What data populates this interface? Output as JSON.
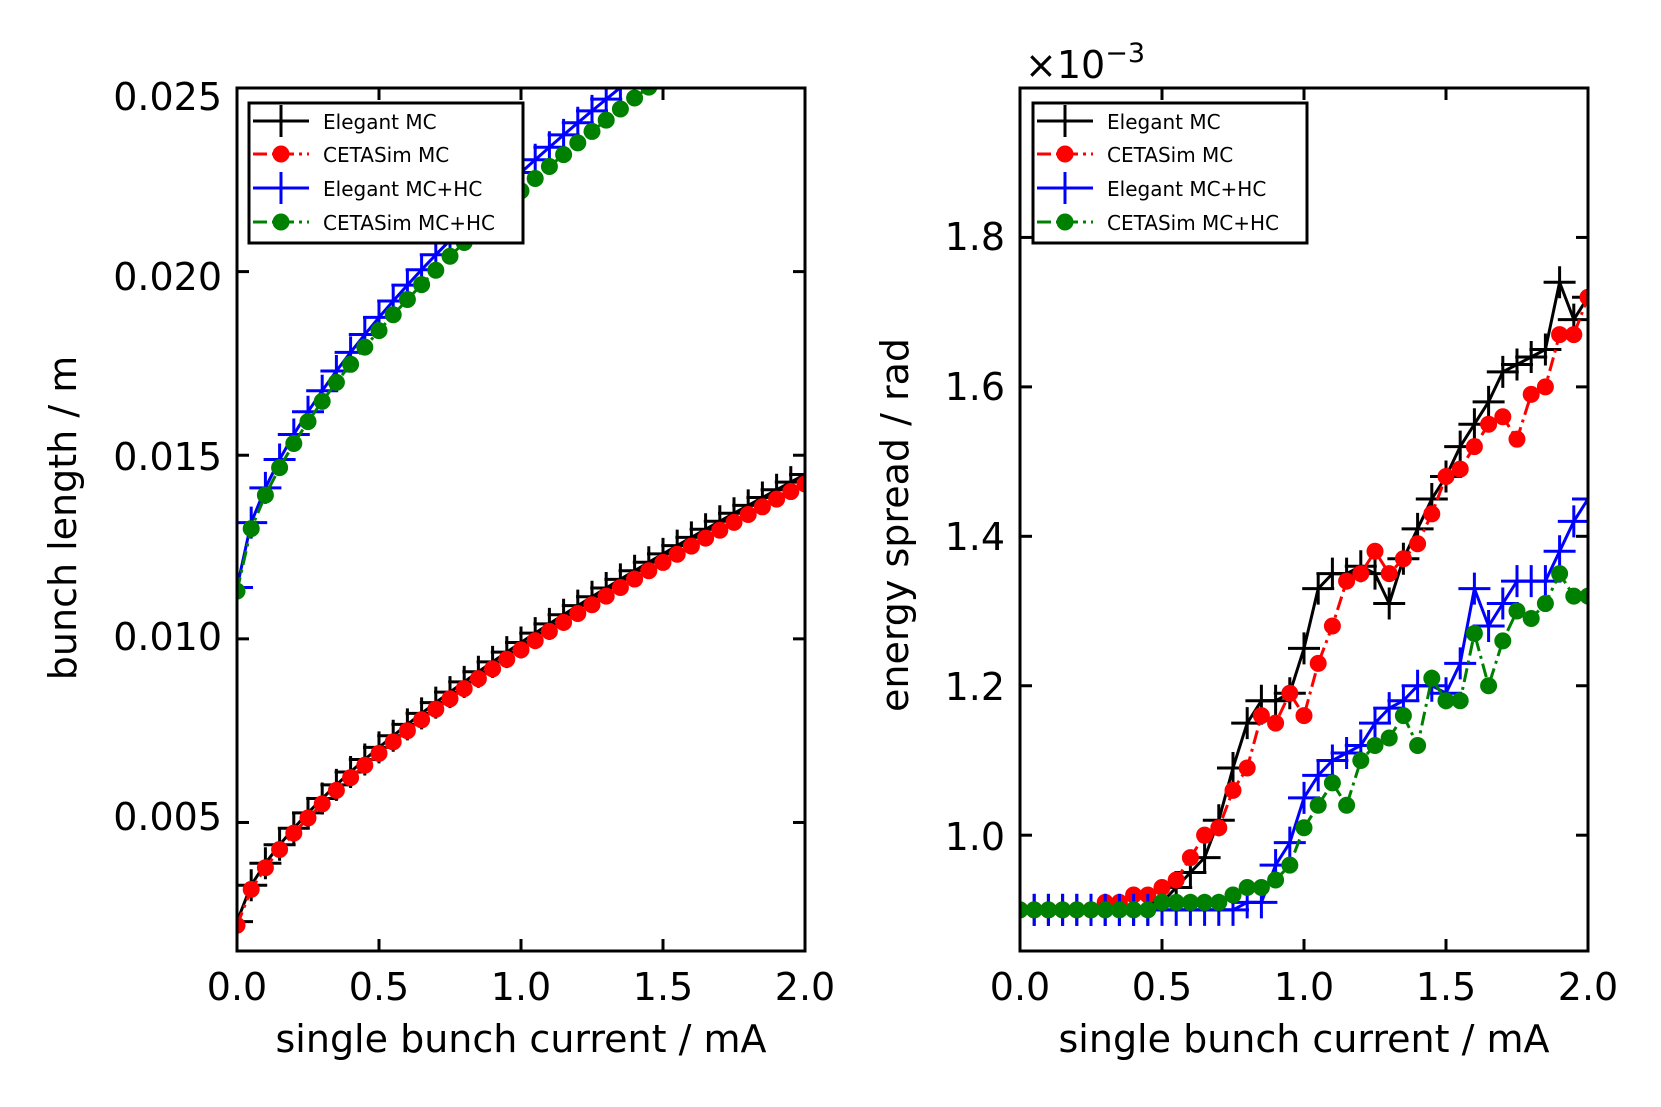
{
  "chart_data": [
    {
      "type": "line",
      "title": "",
      "xlabel": "single bunch current / mA",
      "ylabel": "bunch length / m",
      "xlim": [
        0,
        2.0
      ],
      "ylim": [
        0.0015,
        0.025
      ],
      "x_ticks": [
        0.0,
        0.5,
        1.0,
        1.5,
        2.0
      ],
      "x_tick_labels": [
        "0.0",
        "0.5",
        "1.0",
        "1.5",
        "2.0"
      ],
      "y_ticks": [
        0.005,
        0.01,
        0.015,
        0.02,
        0.025
      ],
      "y_tick_labels": [
        "0.005",
        "0.010",
        "0.015",
        "0.020",
        "0.025"
      ],
      "grid": false,
      "legend_position": "top-left",
      "series": [
        {
          "name": "Elegant MC",
          "color": "#000000",
          "marker": "plus",
          "linestyle": "solid",
          "formula": "power",
          "a": 0.0023,
          "b": 0.0076,
          "p": 0.68
        },
        {
          "name": "CETASim MC",
          "color": "#ff0000",
          "marker": "circle",
          "linestyle": "dashdot",
          "formula": "power",
          "a": 0.0022,
          "b": 0.0075,
          "p": 0.68
        },
        {
          "name": "Elegant MC+HC",
          "color": "#0000ff",
          "marker": "plus",
          "linestyle": "solid",
          "formula": "power",
          "a": 0.0114,
          "b": 0.0113,
          "p": 0.62
        },
        {
          "name": "CETASim MC+HC",
          "color": "#008000",
          "marker": "circle",
          "linestyle": "dashdot",
          "formula": "power",
          "a": 0.0113,
          "b": 0.0109,
          "p": 0.62
        }
      ]
    },
    {
      "type": "line",
      "title": "",
      "xlabel": "single bunch current / mA",
      "ylabel": "energy spread / rad",
      "exponent_label": "×10",
      "exponent_power": "−3",
      "xlim": [
        0,
        2.0
      ],
      "ylim": [
        0.845,
        2.0
      ],
      "x_ticks": [
        0.0,
        0.5,
        1.0,
        1.5,
        2.0
      ],
      "x_tick_labels": [
        "0.0",
        "0.5",
        "1.0",
        "1.5",
        "2.0"
      ],
      "y_ticks": [
        1.0,
        1.2,
        1.4,
        1.6,
        1.8
      ],
      "y_tick_labels": [
        "1.0",
        "1.2",
        "1.4",
        "1.6",
        "1.8"
      ],
      "grid": false,
      "legend_position": "top-left",
      "series": [
        {
          "name": "Elegant MC",
          "color": "#000000",
          "marker": "plus",
          "linestyle": "solid",
          "x": [
            0.0,
            0.05,
            0.1,
            0.15,
            0.2,
            0.25,
            0.3,
            0.35,
            0.4,
            0.45,
            0.5,
            0.55,
            0.6,
            0.65,
            0.7,
            0.75,
            0.8,
            0.85,
            0.9,
            0.95,
            1.0,
            1.05,
            1.1,
            1.15,
            1.2,
            1.25,
            1.3,
            1.35,
            1.4,
            1.45,
            1.5,
            1.55,
            1.6,
            1.65,
            1.7,
            1.75,
            1.8,
            1.85,
            1.9,
            1.95,
            2.0
          ],
          "y": [
            0.9,
            0.9,
            0.9,
            0.9,
            0.9,
            0.9,
            0.9,
            0.9,
            0.9,
            0.9,
            0.91,
            0.93,
            0.95,
            0.97,
            1.02,
            1.09,
            1.15,
            1.18,
            1.18,
            1.19,
            1.25,
            1.33,
            1.35,
            1.35,
            1.36,
            1.35,
            1.31,
            1.37,
            1.41,
            1.45,
            1.48,
            1.52,
            1.55,
            1.58,
            1.62,
            1.63,
            1.64,
            1.65,
            1.74,
            1.69,
            1.72
          ]
        },
        {
          "name": "CETASim MC",
          "color": "#ff0000",
          "marker": "circle",
          "linestyle": "dashdot",
          "x": [
            0.0,
            0.05,
            0.1,
            0.15,
            0.2,
            0.25,
            0.3,
            0.35,
            0.4,
            0.45,
            0.5,
            0.55,
            0.6,
            0.65,
            0.7,
            0.75,
            0.8,
            0.85,
            0.9,
            0.95,
            1.0,
            1.05,
            1.1,
            1.15,
            1.2,
            1.25,
            1.3,
            1.35,
            1.4,
            1.45,
            1.5,
            1.55,
            1.6,
            1.65,
            1.7,
            1.75,
            1.8,
            1.85,
            1.9,
            1.95,
            2.0
          ],
          "y": [
            0.9,
            0.9,
            0.9,
            0.9,
            0.9,
            0.9,
            0.91,
            0.91,
            0.92,
            0.92,
            0.93,
            0.94,
            0.97,
            1.0,
            1.01,
            1.06,
            1.09,
            1.16,
            1.15,
            1.19,
            1.16,
            1.23,
            1.28,
            1.34,
            1.35,
            1.38,
            1.35,
            1.37,
            1.39,
            1.43,
            1.48,
            1.49,
            1.52,
            1.55,
            1.56,
            1.53,
            1.59,
            1.6,
            1.67,
            1.67,
            1.72
          ]
        },
        {
          "name": "Elegant MC+HC",
          "color": "#0000ff",
          "marker": "plus",
          "linestyle": "solid",
          "x": [
            0.0,
            0.05,
            0.1,
            0.15,
            0.2,
            0.25,
            0.3,
            0.35,
            0.4,
            0.45,
            0.5,
            0.55,
            0.6,
            0.65,
            0.7,
            0.75,
            0.8,
            0.85,
            0.9,
            0.95,
            1.0,
            1.05,
            1.1,
            1.15,
            1.2,
            1.25,
            1.3,
            1.35,
            1.4,
            1.45,
            1.5,
            1.55,
            1.6,
            1.65,
            1.7,
            1.75,
            1.8,
            1.85,
            1.9,
            1.95,
            2.0
          ],
          "y": [
            0.9,
            0.9,
            0.9,
            0.9,
            0.9,
            0.9,
            0.9,
            0.9,
            0.9,
            0.9,
            0.9,
            0.9,
            0.9,
            0.9,
            0.9,
            0.9,
            0.91,
            0.91,
            0.96,
            0.99,
            1.05,
            1.08,
            1.1,
            1.11,
            1.12,
            1.15,
            1.17,
            1.18,
            1.2,
            1.2,
            1.19,
            1.23,
            1.33,
            1.28,
            1.31,
            1.34,
            1.34,
            1.34,
            1.38,
            1.42,
            1.45
          ]
        },
        {
          "name": "CETASim MC+HC",
          "color": "#008000",
          "marker": "circle",
          "linestyle": "dashdot",
          "x": [
            0.0,
            0.05,
            0.1,
            0.15,
            0.2,
            0.25,
            0.3,
            0.35,
            0.4,
            0.45,
            0.5,
            0.55,
            0.6,
            0.65,
            0.7,
            0.75,
            0.8,
            0.85,
            0.9,
            0.95,
            1.0,
            1.05,
            1.1,
            1.15,
            1.2,
            1.25,
            1.3,
            1.35,
            1.4,
            1.45,
            1.5,
            1.55,
            1.6,
            1.65,
            1.7,
            1.75,
            1.8,
            1.85,
            1.9,
            1.95,
            2.0
          ],
          "y": [
            0.9,
            0.9,
            0.9,
            0.9,
            0.9,
            0.9,
            0.9,
            0.9,
            0.9,
            0.9,
            0.91,
            0.91,
            0.91,
            0.91,
            0.91,
            0.92,
            0.93,
            0.93,
            0.94,
            0.96,
            1.01,
            1.04,
            1.07,
            1.04,
            1.1,
            1.12,
            1.13,
            1.16,
            1.12,
            1.21,
            1.18,
            1.18,
            1.27,
            1.2,
            1.26,
            1.3,
            1.29,
            1.31,
            1.35,
            1.32,
            1.32
          ]
        }
      ]
    }
  ]
}
